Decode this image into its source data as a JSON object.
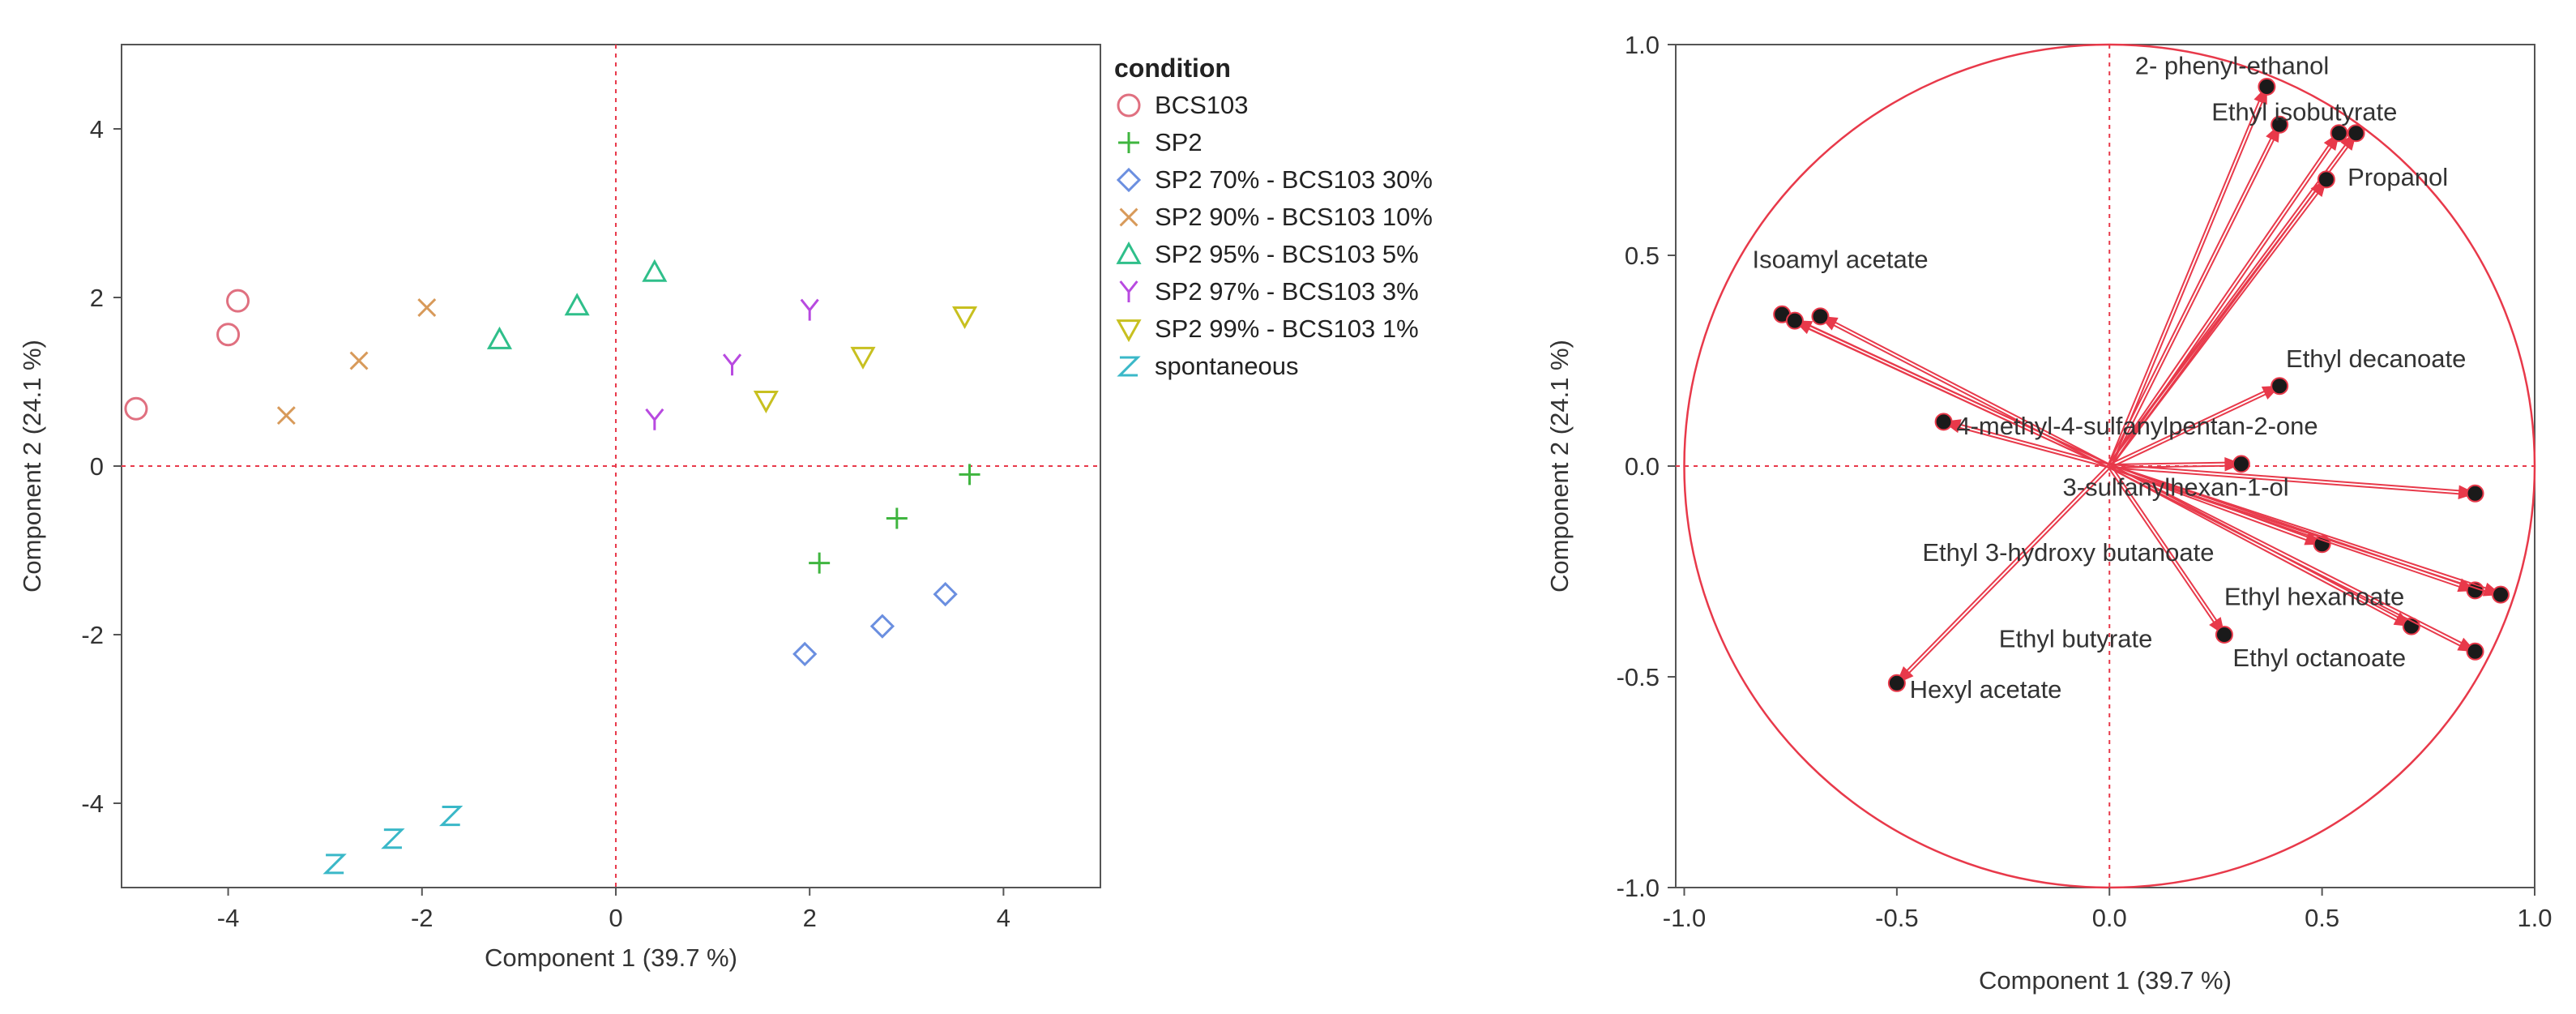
{
  "chart_data": [
    {
      "type": "scatter",
      "xlabel": "Component 1  (39.7 %)",
      "ylabel": "Component 2  (24.1 %)",
      "xlim": [
        -5.1,
        5.0
      ],
      "ylim": [
        -5.0,
        5.0
      ],
      "xticks": [
        "-4",
        "-2",
        "0",
        "2",
        "4"
      ],
      "xtick_values": [
        -4,
        -2,
        0,
        2,
        4
      ],
      "yticks": [
        "4",
        "2",
        "0",
        "-2",
        "-4"
      ],
      "ytick_values": [
        4,
        2,
        0,
        -2,
        -4
      ],
      "legend_title": "condition",
      "legend_position": "right",
      "series": [
        {
          "name": "BCS103",
          "marker": "circle",
          "color": "#e07080",
          "points": [
            [
              -4.95,
              0.68
            ],
            [
              -4.0,
              1.56
            ],
            [
              -3.9,
              1.96
            ]
          ]
        },
        {
          "name": "SP2",
          "marker": "plus",
          "color": "#3fb53f",
          "points": [
            [
              3.65,
              -0.1
            ],
            [
              2.9,
              -0.62
            ],
            [
              2.1,
              -1.15
            ]
          ]
        },
        {
          "name": "SP2 70% - BCS103 30%",
          "marker": "diamond",
          "color": "#6b8fe0",
          "points": [
            [
              3.4,
              -1.52
            ],
            [
              2.75,
              -1.9
            ],
            [
              1.95,
              -2.23
            ]
          ]
        },
        {
          "name": "SP2 90% - BCS103 10%",
          "marker": "x",
          "color": "#d89a5a",
          "points": [
            [
              -3.4,
              0.6
            ],
            [
              -2.65,
              1.25
            ],
            [
              -1.95,
              1.88
            ]
          ]
        },
        {
          "name": "SP2 95% - BCS103 5%",
          "marker": "triangle",
          "color": "#2fbf8a",
          "points": [
            [
              -1.2,
              1.5
            ],
            [
              -0.4,
              1.9
            ],
            [
              0.4,
              2.3
            ]
          ]
        },
        {
          "name": "SP2 97% - BCS103 3%",
          "marker": "Y",
          "color": "#b84ae0",
          "points": [
            [
              0.4,
              0.55
            ],
            [
              1.2,
              1.2
            ],
            [
              2.0,
              1.85
            ]
          ]
        },
        {
          "name": "SP2 99% - BCS103 1%",
          "marker": "triangle-down",
          "color": "#c8c020",
          "points": [
            [
              1.55,
              0.78
            ],
            [
              2.55,
              1.3
            ],
            [
              3.6,
              1.78
            ]
          ]
        },
        {
          "name": "spontaneous",
          "marker": "Z",
          "color": "#3ab8c8",
          "points": [
            [
              -2.9,
              -4.72
            ],
            [
              -2.3,
              -4.42
            ],
            [
              -1.7,
              -4.15
            ]
          ]
        }
      ]
    },
    {
      "type": "scatter",
      "subtype": "loading-plot",
      "xlabel": "Component 1  (39.7 %)",
      "ylabel": "Component 2  (24.1 %)",
      "xlim": [
        -1.02,
        1.0
      ],
      "ylim": [
        -1.0,
        1.0
      ],
      "xticks": [
        "-1.0",
        "-0.5",
        "0.0",
        "0.5",
        "1.0"
      ],
      "xtick_values": [
        -1.0,
        -0.5,
        0.0,
        0.5,
        1.0
      ],
      "yticks": [
        "1.0",
        "0.5",
        "0.0",
        "-0.5",
        "-1.0"
      ],
      "ytick_values": [
        1.0,
        0.5,
        0.0,
        -0.5,
        -1.0
      ],
      "color": "#e8394a",
      "unit_circle": true,
      "vectors": [
        {
          "x": 0.37,
          "y": 0.9
        },
        {
          "x": 0.4,
          "y": 0.81
        },
        {
          "x": 0.54,
          "y": 0.79
        },
        {
          "x": 0.58,
          "y": 0.79
        },
        {
          "x": 0.51,
          "y": 0.68
        },
        {
          "x": -0.77,
          "y": 0.36
        },
        {
          "x": -0.74,
          "y": 0.345
        },
        {
          "x": -0.68,
          "y": 0.355
        },
        {
          "x": 0.4,
          "y": 0.19
        },
        {
          "x": -0.39,
          "y": 0.105
        },
        {
          "x": 0.31,
          "y": 0.005
        },
        {
          "x": 0.86,
          "y": -0.065
        },
        {
          "x": 0.5,
          "y": -0.185
        },
        {
          "x": 0.86,
          "y": -0.295
        },
        {
          "x": 0.92,
          "y": -0.305
        },
        {
          "x": 0.71,
          "y": -0.38
        },
        {
          "x": 0.86,
          "y": -0.44
        },
        {
          "x": 0.27,
          "y": -0.4
        },
        {
          "x": -0.5,
          "y": -0.515
        }
      ],
      "labels": [
        {
          "text": "2- phenyl-ethanol"
        },
        {
          "text": "Ethyl isobutyrate"
        },
        {
          "text": "Propanol"
        },
        {
          "text": "Isoamyl acetate"
        },
        {
          "text": "Ethyl decanoate"
        },
        {
          "text": "4-methyl-4-sulfanylpentan-2-one"
        },
        {
          "text": "3-sulfanylhexan-1-ol"
        },
        {
          "text": "Ethyl 3-hydroxy butanoate"
        },
        {
          "text": "Ethyl hexanoate"
        },
        {
          "text": "Ethyl butyrate"
        },
        {
          "text": "Ethyl octanoate"
        },
        {
          "text": "Hexyl acetate"
        }
      ]
    }
  ]
}
